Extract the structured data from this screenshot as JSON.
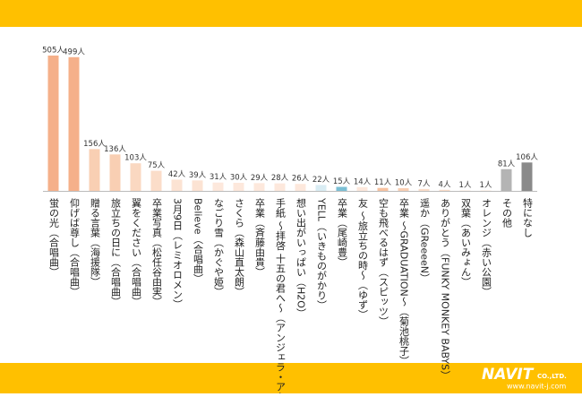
{
  "chart_data": {
    "type": "bar",
    "categories": [
      "蛍の光（合唱曲）",
      "仰げば尊し（合唱曲）",
      "贈る言葉（海援隊）",
      "旅立ちの日に（合唱曲）",
      "翼をください（合唱曲）",
      "卒業写真（松任谷由実）",
      "3月9日（レミオロメン）",
      "Believe（合唱曲）",
      "なごり雪（かぐや姫）",
      "さくら（森山直太朗）",
      "卒業（斉藤由貴）",
      "手紙 ～拝啓 十五の君へ～（アンジェラ・アキ）",
      "想い出がいっぱい（H2O）",
      "YELL（いきものがかり）",
      "卒業（尾崎豊）",
      "友 ～旅立ちの時～（ゆず）",
      "空も飛べるはず（スピッツ）",
      "卒業 ～GRADUATION～（菊池桃子）",
      "遥か（GReeeeN）",
      "ありがとう（FUNKY MONKEY BABYS）",
      "双葉（あいみょん）",
      "オレンジ（赤い公園）",
      "その他",
      "特になし"
    ],
    "values": [
      505,
      499,
      156,
      136,
      103,
      75,
      42,
      39,
      31,
      30,
      29,
      28,
      26,
      22,
      15,
      14,
      11,
      10,
      7,
      4,
      1,
      1,
      81,
      106
    ],
    "value_labels": [
      "505人",
      "499人",
      "156人",
      "136人",
      "103人",
      "75人",
      "42人",
      "39人",
      "31人",
      "30人",
      "29人",
      "28人",
      "26人",
      "22人",
      "15人",
      "14人",
      "11人",
      "10人",
      "7人",
      "4人",
      "1人",
      "1人",
      "81人",
      "106人"
    ],
    "colors": [
      "#f5b08a",
      "#f5b08a",
      "#f9cfb3",
      "#f9cfb3",
      "#fad8c1",
      "#fbddc9",
      "#fce3d3",
      "#fce3d3",
      "#fde8dc",
      "#fde8dc",
      "#fde8dc",
      "#fde8dc",
      "#fde8dc",
      "#d9ecf3",
      "#7bbfd4",
      "#fde8dc",
      "#f7c2a0",
      "#f9cfb3",
      "#fbddc9",
      "#fbddc9",
      "#fbddc9",
      "#fbddc9",
      "#b4b4b4",
      "#8a8a8a"
    ]
  },
  "footer": {
    "logo": "NAVIT",
    "suffix": "CO.,LTD.",
    "url": "www.navit-j.com"
  }
}
